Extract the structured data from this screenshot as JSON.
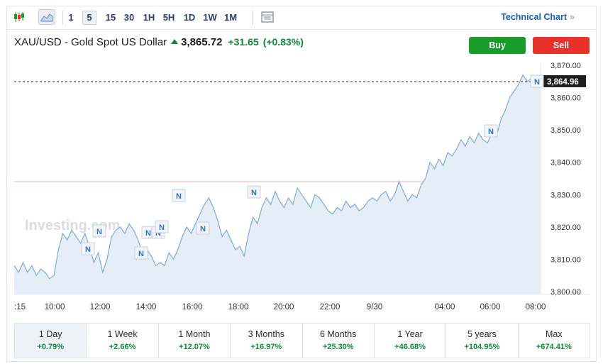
{
  "toolbar": {
    "candles_icon": "candlestick-icon",
    "area_icon": "area-chart-icon",
    "timeframes": [
      "1",
      "5",
      "15",
      "30",
      "1H",
      "5H",
      "1D",
      "1W",
      "1M"
    ],
    "active_timeframe": "5",
    "table_icon": "table-icon",
    "technical_chart_label": "Technical Chart",
    "technical_chart_chevron": "»"
  },
  "instrument": {
    "name": "XAU/USD - Gold Spot US Dollar",
    "price": "3,865.72",
    "change": "+31.65",
    "change_pct": "(+0.83%)"
  },
  "actions": {
    "buy_label": "Buy",
    "sell_label": "Sell"
  },
  "colors": {
    "up": "#0c8a3a",
    "down": "#e6322b",
    "buy": "#1a9c2a",
    "line": "#7fa9d6",
    "fill": "#e5eef7",
    "marker": "#2f74c0"
  },
  "chart": {
    "watermark": "Investing.com",
    "news_marker_label": "N",
    "x_ticks": [
      ":15",
      "10:00",
      "12:00",
      "14:00",
      "16:00",
      "18:00",
      "20:00",
      "22:00",
      "9/30",
      "04:00",
      "06:00",
      "08:00"
    ],
    "y_ticks": [
      "3,870.00",
      "3,860.00",
      "3,850.00",
      "3,840.00",
      "3,830.00",
      "3,820.00",
      "3,810.00",
      "3,800.00"
    ],
    "last_price_label": "3,864.96"
  },
  "chart_data": {
    "type": "area",
    "ylim": [
      3800,
      3870
    ],
    "last_price": 3864.96,
    "reference_line": 3834,
    "series": [
      {
        "values": [
          3808,
          3806,
          3809,
          3806,
          3808,
          3805,
          3807,
          3806,
          3804,
          3805,
          3813,
          3818,
          3816,
          3819,
          3817,
          3815,
          3818,
          3814,
          3809,
          3812,
          3806,
          3810,
          3817,
          3819,
          3820,
          3818,
          3821,
          3819,
          3816,
          3812,
          3813,
          3811,
          3808,
          3809,
          3808,
          3812,
          3810,
          3813,
          3817,
          3820,
          3818,
          3821,
          3824,
          3827,
          3829,
          3826,
          3822,
          3817,
          3819,
          3816,
          3813,
          3814,
          3811,
          3818,
          3823,
          3821,
          3826,
          3829,
          3827,
          3831,
          3828,
          3826,
          3829,
          3827,
          3832,
          3830,
          3828,
          3826,
          3830,
          3829,
          3827,
          3825,
          3824,
          3826,
          3825,
          3828,
          3826,
          3827,
          3825,
          3826,
          3828,
          3829,
          3828,
          3830,
          3831,
          3828,
          3830,
          3834,
          3831,
          3828,
          3830,
          3829,
          3833,
          3835,
          3840,
          3838,
          3841,
          3839,
          3843,
          3842,
          3844,
          3847,
          3845,
          3848,
          3846,
          3849,
          3847,
          3846,
          3849,
          3848,
          3853,
          3856,
          3860,
          3862,
          3864,
          3867,
          3865,
          3866,
          3864,
          3865
        ]
      }
    ],
    "x_labels": [
      ":15",
      "10:00",
      "12:00",
      "14:00",
      "16:00",
      "18:00",
      "20:00",
      "22:00",
      "9/30",
      "04:00",
      "06:00",
      "08:00"
    ],
    "news_markers": 11
  },
  "periods": [
    {
      "label": "1 Day",
      "value": "+0.79%"
    },
    {
      "label": "1 Week",
      "value": "+2.66%"
    },
    {
      "label": "1 Month",
      "value": "+12.07%"
    },
    {
      "label": "3 Months",
      "value": "+16.97%"
    },
    {
      "label": "6 Months",
      "value": "+25.30%"
    },
    {
      "label": "1 Year",
      "value": "+46.68%"
    },
    {
      "label": "5 years",
      "value": "+104.95%"
    },
    {
      "label": "Max",
      "value": "+674.41%"
    }
  ]
}
